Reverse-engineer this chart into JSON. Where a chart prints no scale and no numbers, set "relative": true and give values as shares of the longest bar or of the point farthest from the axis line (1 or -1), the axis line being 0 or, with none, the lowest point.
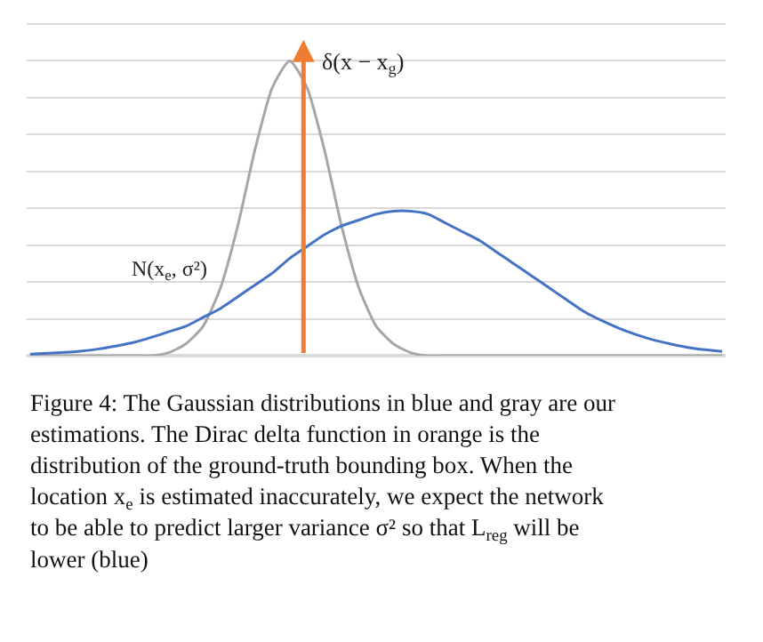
{
  "chart_data": {
    "type": "line",
    "relative": true,
    "grid": "y",
    "marker": "none",
    "line_style": "solid",
    "categories": [
      null,
      null,
      null,
      null,
      null,
      null,
      null,
      null,
      null,
      null,
      null,
      null,
      null,
      null,
      null,
      null,
      null,
      null,
      null,
      null,
      null,
      null,
      null,
      null,
      null,
      null,
      null,
      null,
      null,
      null,
      null,
      null,
      null,
      null,
      null,
      null,
      null,
      null,
      null,
      null,
      null
    ],
    "series": [
      {
        "name": "N(x$_{e}$, σ²)",
        "color": "#a6a6a6",
        "values": [
          0,
          0,
          0,
          0,
          0,
          0,
          0,
          0,
          0.01,
          0.04,
          0.1,
          0.23,
          0.44,
          0.7,
          0.91,
          1,
          0.91,
          0.7,
          0.44,
          0.23,
          0.1,
          0.04,
          0.01,
          0,
          0,
          0,
          0,
          0,
          0,
          0,
          0,
          0,
          0,
          0,
          0,
          0,
          0,
          0,
          0,
          0,
          0
        ]
      },
      {
        "color": "#4472c4",
        "values": [
          0.005,
          0.008,
          0.011,
          0.016,
          0.023,
          0.033,
          0.045,
          0.062,
          0.081,
          0.1,
          0.13,
          0.16,
          0.2,
          0.24,
          0.28,
          0.33,
          0.37,
          0.41,
          0.44,
          0.46,
          0.48,
          0.49,
          0.49,
          0.48,
          0.45,
          0.42,
          0.39,
          0.35,
          0.31,
          0.27,
          0.23,
          0.19,
          0.15,
          0.12,
          0.094,
          0.072,
          0.054,
          0.04,
          0.028,
          0.02,
          0.014
        ]
      }
    ],
    "annotations": [
      "δ(x − x$_{g}$)",
      "Figure 4: The Gaussian distributions in blue and gray are our estimations. The Dirac delta function in orange is the distribution of the ground-truth bounding box. When the location x$_{e}$ is estimated inaccurately, we expect the network to be able to predict larger variance σ² so that L$_{reg}$ will be lower (blue)"
    ]
  }
}
